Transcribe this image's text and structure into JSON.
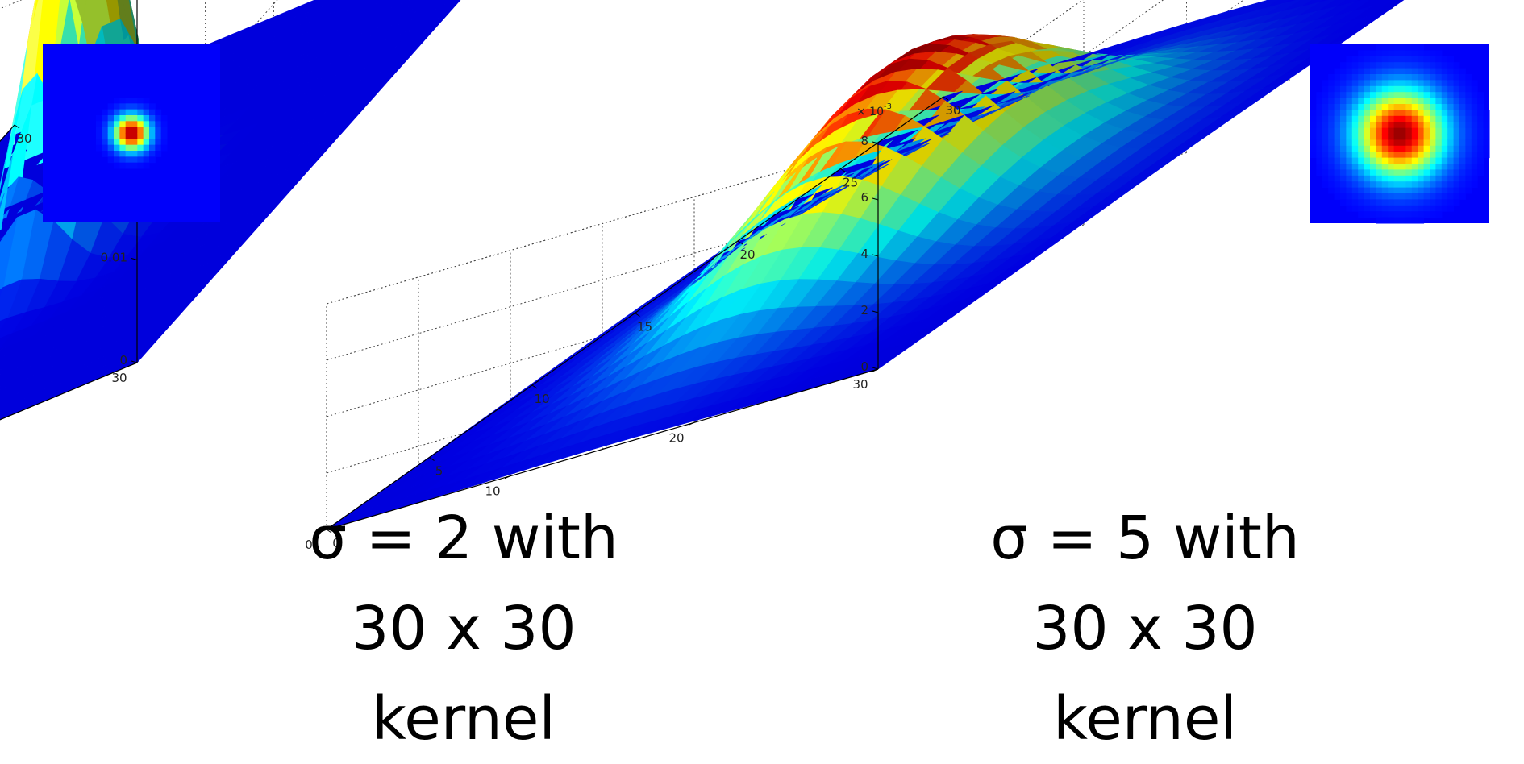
{
  "chart_data": [
    {
      "type": "surface",
      "title": "",
      "xlabel": "",
      "ylabel": "",
      "zlabel": "",
      "sigma": 2,
      "kernel_size": [
        30,
        30
      ],
      "x_range": [
        0,
        30
      ],
      "y_range": [
        0,
        30
      ],
      "z_range": [
        0,
        0.04
      ],
      "x_ticks": [
        "0",
        "5",
        "10",
        "15",
        "20",
        "25",
        "30"
      ],
      "y_ticks": [
        "0",
        "10",
        "20",
        "30"
      ],
      "z_ticks": [
        "0",
        "0.01",
        "0.02"
      ],
      "z_peak": 0.0398,
      "z_exponent_label": "",
      "colormap": "jet",
      "grid": true,
      "inset": "top-left"
    },
    {
      "type": "surface",
      "title": "",
      "xlabel": "",
      "ylabel": "",
      "zlabel": "",
      "sigma": 5,
      "kernel_size": [
        30,
        30
      ],
      "x_range": [
        0,
        30
      ],
      "y_range": [
        0,
        30
      ],
      "z_range": [
        0,
        8
      ],
      "x_ticks": [
        "0",
        "5",
        "10",
        "15",
        "20",
        "25",
        "30"
      ],
      "y_ticks": [
        "0",
        "10",
        "20",
        "30"
      ],
      "z_ticks": [
        "0",
        "2",
        "4",
        "6",
        "8"
      ],
      "z_peak": 6.4,
      "z_exponent_label": "× 10",
      "z_exponent": "-3",
      "colormap": "jet",
      "grid": true,
      "inset": "top-right"
    }
  ],
  "captions": [
    {
      "line1": "σ = 2 with",
      "line2": "30 x 30",
      "line3": "kernel"
    },
    {
      "line1": "σ = 5 with",
      "line2": "30 x 30",
      "line3": "kernel"
    }
  ]
}
